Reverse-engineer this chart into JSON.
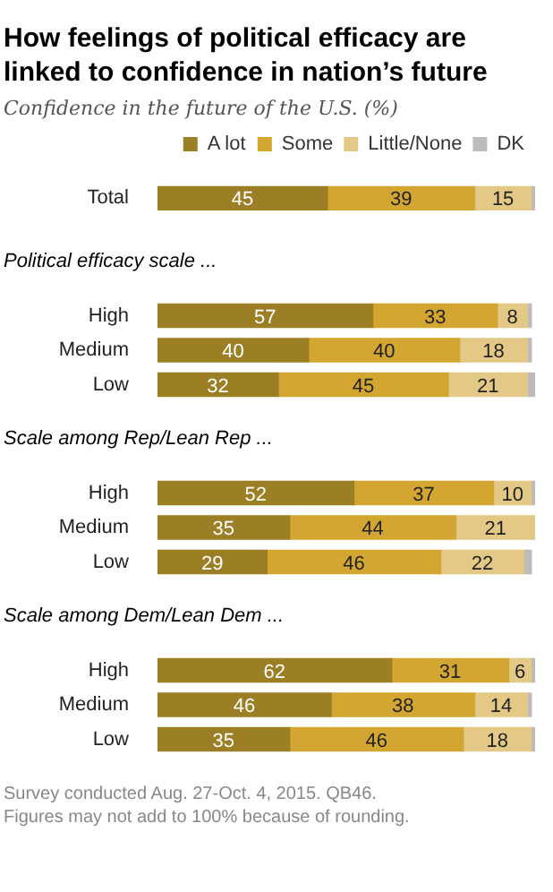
{
  "chart_data": [
    {
      "type": "bar",
      "orientation": "horizontal",
      "stacked": true,
      "title": "How feelings of political efficacy are linked to confidence in nation’s future",
      "subtitle": "Confidence in the future of the U.S. (%)",
      "categories": [
        "Total"
      ],
      "legend": "top",
      "series": [
        {
          "name": "A lot",
          "color": "#9c7f24",
          "values": [
            45
          ],
          "value_labels": [
            "45"
          ]
        },
        {
          "name": "Some",
          "color": "#d2a631",
          "values": [
            39
          ],
          "value_labels": [
            "39"
          ]
        },
        {
          "name": "Little/None",
          "color": "#e3c985",
          "values": [
            15
          ],
          "value_labels": [
            "15"
          ]
        },
        {
          "name": "DK",
          "color": "#bcbcbc",
          "values": [
            1
          ],
          "value_labels": [
            null
          ]
        }
      ]
    },
    {
      "type": "bar",
      "orientation": "horizontal",
      "stacked": true,
      "title": "Political efficacy scale ...",
      "categories": [
        "High",
        "Medium",
        "Low"
      ],
      "legend": false,
      "series": [
        {
          "color": "#9c7f24",
          "values": [
            57,
            40,
            32
          ],
          "value_labels": [
            "57",
            "40",
            "32"
          ]
        },
        {
          "color": "#d2a631",
          "values": [
            33,
            40,
            45
          ],
          "value_labels": [
            "33",
            "40",
            "45"
          ]
        },
        {
          "color": "#e3c985",
          "values": [
            8,
            18,
            21
          ],
          "value_labels": [
            "8",
            "18",
            "21"
          ]
        },
        {
          "color": "#bcbcbc",
          "values": [
            1,
            1,
            2
          ],
          "value_labels": [
            null,
            null,
            null
          ]
        }
      ]
    },
    {
      "type": "bar",
      "orientation": "horizontal",
      "stacked": true,
      "title": "Scale among Rep/Lean Rep ...",
      "categories": [
        "High",
        "Medium",
        "Low"
      ],
      "legend": false,
      "series": [
        {
          "color": "#9c7f24",
          "values": [
            52,
            35,
            29
          ],
          "value_labels": [
            "52",
            "35",
            "29"
          ]
        },
        {
          "color": "#d2a631",
          "values": [
            37,
            44,
            46
          ],
          "value_labels": [
            "37",
            "44",
            "46"
          ]
        },
        {
          "color": "#e3c985",
          "values": [
            10,
            21,
            22
          ],
          "value_labels": [
            "10",
            "21",
            "22"
          ]
        },
        {
          "color": "#bcbcbc",
          "values": [
            1,
            0,
            2
          ],
          "value_labels": [
            null,
            null,
            null
          ]
        }
      ]
    },
    {
      "type": "bar",
      "orientation": "horizontal",
      "stacked": true,
      "title": "Scale among Dem/Lean Dem ...",
      "categories": [
        "High",
        "Medium",
        "Low"
      ],
      "legend": false,
      "annotations": [
        "Survey conducted Aug. 27-Oct. 4, 2015. QB46.",
        "Figures may not add to 100% because of rounding."
      ],
      "series": [
        {
          "color": "#9c7f24",
          "values": [
            62,
            46,
            35
          ],
          "value_labels": [
            "62",
            "46",
            "35"
          ]
        },
        {
          "color": "#d2a631",
          "values": [
            31,
            38,
            46
          ],
          "value_labels": [
            "31",
            "38",
            "46"
          ]
        },
        {
          "color": "#e3c985",
          "values": [
            6,
            14,
            18
          ],
          "value_labels": [
            "6",
            "14",
            "18"
          ]
        },
        {
          "color": "#bcbcbc",
          "values": [
            1,
            1,
            1
          ],
          "value_labels": [
            null,
            null,
            null
          ]
        }
      ]
    }
  ]
}
